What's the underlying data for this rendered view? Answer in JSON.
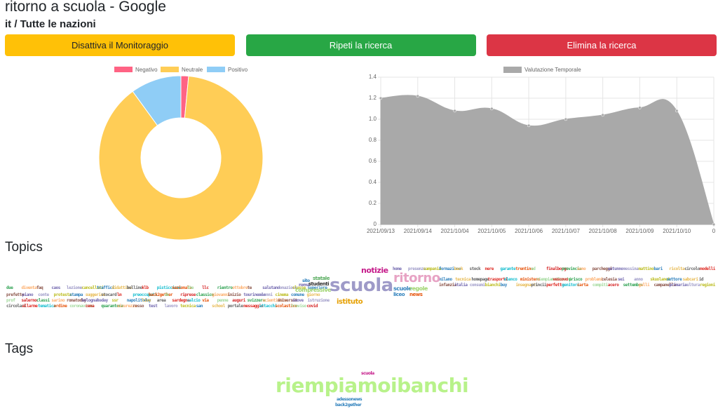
{
  "header": {
    "title": "ritorno a scuola - Google",
    "subtitle": "it / Tutte le nazioni"
  },
  "buttons": [
    {
      "label": "Disattiva il Monitoraggio",
      "color": "#ffc107",
      "text_color": "#212529"
    },
    {
      "label": "Ripeti la ricerca",
      "color": "#28a745",
      "text_color": "#ffffff"
    },
    {
      "label": "Elimina la ricerca",
      "color": "#dc3545",
      "text_color": "#ffffff"
    }
  ],
  "sentiment_chart": {
    "type": "doughnut",
    "series": [
      {
        "name": "Negativo",
        "color": "#ff6384",
        "value": 1.5
      },
      {
        "name": "Neutrale",
        "color": "#ffcd56",
        "value": 88.5
      },
      {
        "name": "Positivo",
        "color": "#8fcdf6",
        "value": 10
      }
    ]
  },
  "time_chart": {
    "type": "area",
    "series_name": "Valutazione Temporale",
    "color": "#a9a9a9",
    "categories": [
      "2021/09/13",
      "2021/09/14",
      "2021/10/04",
      "2021/10/05",
      "2021/10/06",
      "2021/10/07",
      "2021/10/08",
      "2021/10/09",
      "2021/10/10",
      "0"
    ],
    "values": [
      1.2,
      1.22,
      1.08,
      1.1,
      0.94,
      1.0,
      1.04,
      1.11,
      1.08,
      0
    ],
    "ylim": [
      0,
      1.4
    ],
    "yticks": [
      0,
      0.2,
      0.4,
      0.6,
      0.8,
      {
        "value": 1,
        "label": "1.0"
      },
      1.2,
      1.4
    ]
  },
  "topics": {
    "title": "Topics",
    "left_rows": [
      [
        "due",
        "diventa",
        "faq",
        "caos",
        "lezione",
        "cancellati",
        "traffici",
        "didattica",
        "bellino",
        "klb",
        "pisticcicom",
        "nazionale",
        "the",
        "llc",
        "rientro",
        "ottobre",
        "te",
        "salutano",
        "donazione",
        "classe",
        "superiore"
      ],
      [
        "prefetto",
        "piano",
        "conte",
        "protesta",
        "stampa",
        "suggerire",
        "stocard",
        "lm",
        "preoccupati",
        "back2gether",
        "de",
        "riprese",
        "classico",
        "giovanni",
        "inizio",
        "tourinense",
        "alunni",
        "cinema",
        "comune",
        "giorno"
      ],
      [
        "prof",
        "salerno",
        "classi",
        "sarino",
        "romatoday",
        "bolognatoday",
        "bere",
        "ssr",
        "napolitoday",
        "live",
        "area",
        "sardegna",
        "calcio",
        "via",
        "penne",
        "auguri",
        "svizzera",
        "scientifica",
        "universit",
        "nuove",
        "istruzione"
      ],
      [
        "circolari",
        "allarme",
        "tematica",
        "ordine",
        "coronavirus",
        "cena",
        "quarantena",
        "sicurezza",
        "rosso",
        "test",
        "lavoro",
        "tecnica",
        "san",
        "school",
        "portale",
        "messaggio",
        "attacchi",
        "scolastico",
        "treviso",
        "covid"
      ]
    ],
    "center": [
      "statale",
      "sito",
      "roma",
      "studenti",
      "compressive",
      "scuola",
      "notizie",
      "ritorno",
      "scuole",
      "regole",
      "liceo",
      "news",
      "istituto"
    ],
    "right_rows": [
      [
        "home",
        "presenza",
        "campania",
        "formazione",
        "back",
        "stock",
        "nere",
        "garante",
        "trentino",
        "ed",
        "finalborgo",
        "provincia",
        "sono",
        "parcheggi",
        "autunno",
        "messina",
        "mattino",
        "bari",
        "ricolta",
        "circolo",
        "modelli"
      ],
      [
        "milano",
        "tecnica",
        "homepage",
        "trasporti",
        "elenco",
        "ministero",
        "riempiamoibanchi",
        "vescovo",
        "prisco",
        "problemi",
        "celesia",
        "sei",
        "anno",
        "skuolanet",
        "settore",
        "sabcari",
        "id"
      ],
      [
        "infanzia",
        "italia",
        "consumi",
        "bianchi",
        "buy",
        "insegnanti",
        "princii",
        "perfetto",
        "genitori",
        "carta",
        "compiti",
        "acero",
        "settembre",
        "galli",
        "campanella",
        "primaria",
        "cultura",
        "regioni"
      ]
    ]
  },
  "tags": {
    "title": "Tags",
    "words": [
      "scuola",
      "riempiamoibanchi",
      "adessonews",
      "back2gether"
    ]
  }
}
